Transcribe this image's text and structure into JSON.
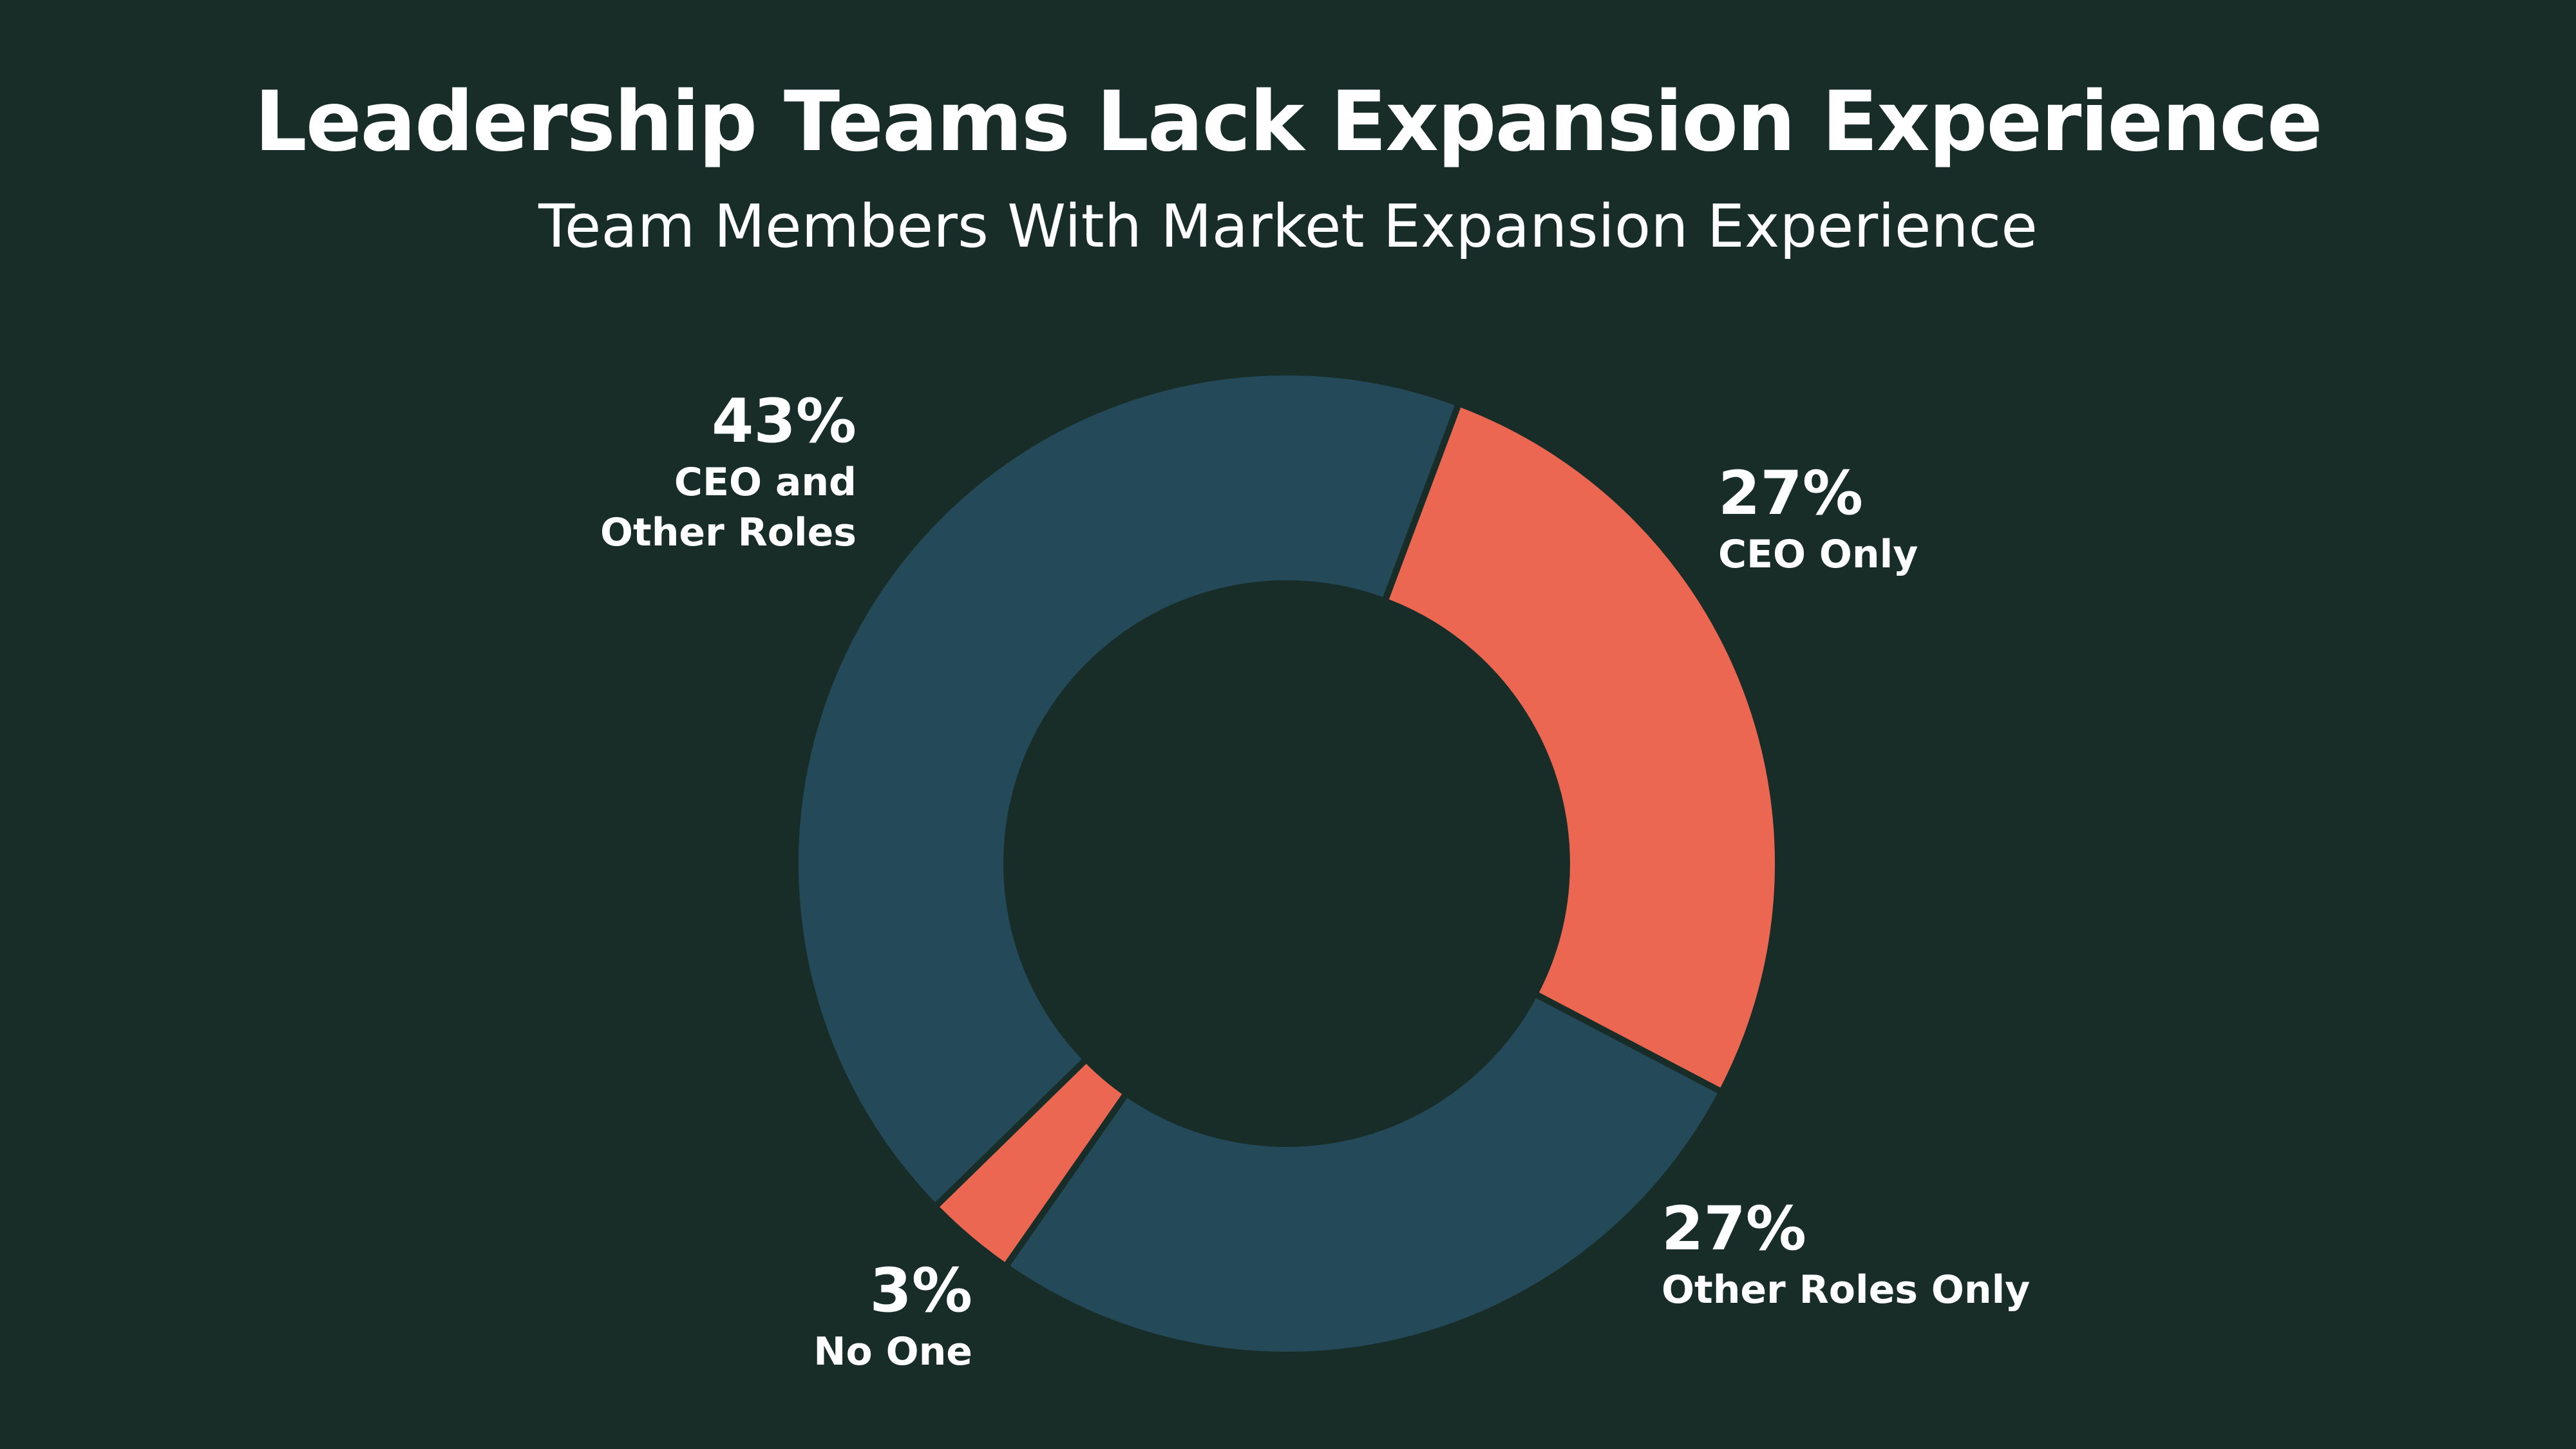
{
  "chart_data": {
    "type": "pie",
    "variant": "donut",
    "title": "Leadership Teams Lack Expansion Experience",
    "subtitle": "Team Members With Market Expansion Experience",
    "categories": [
      "CEO and Other Roles",
      "CEO Only",
      "Other Roles Only",
      "No One"
    ],
    "values": [
      43,
      27,
      27,
      3
    ],
    "value_labels": [
      "43%",
      "27%",
      "27%",
      "3%"
    ],
    "category_labels": [
      "CEO and\nOther Roles",
      "CEO Only",
      "Other Roles Only",
      "No One"
    ],
    "colors": [
      "#244a5a",
      "#eb6752",
      "#244a5a",
      "#eb6752"
    ],
    "background_color": "#182d28",
    "separator_color": "#182d28",
    "legend": "none"
  }
}
